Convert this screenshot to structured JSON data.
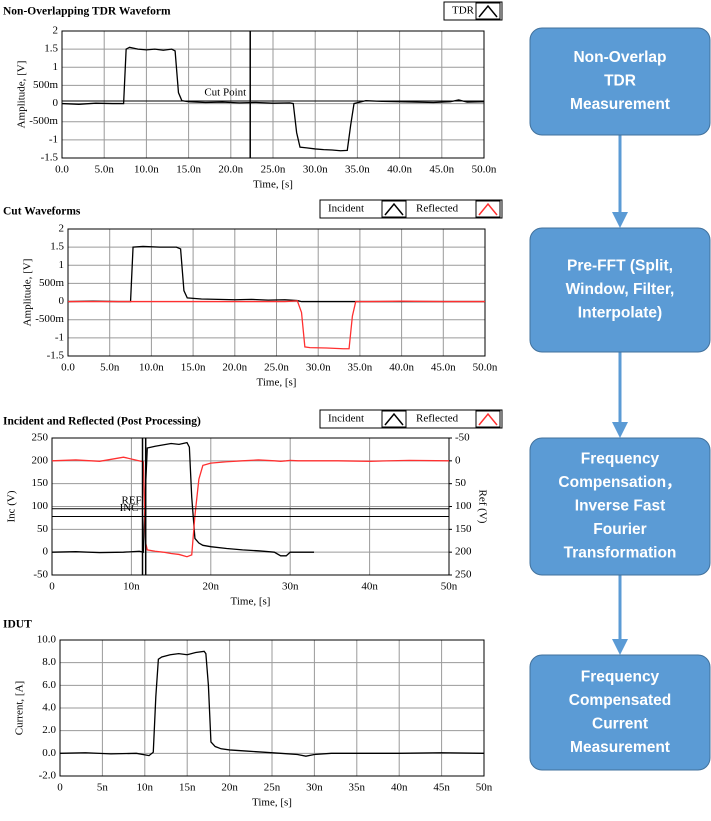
{
  "chart_data": [
    {
      "type": "line",
      "title": "Non-Overlapping TDR Waveform",
      "xlabel": "Time, [s]",
      "ylabel": "Amplitude, [V]",
      "xlim": [
        0,
        5e-08
      ],
      "ylim": [
        -1.5,
        2
      ],
      "grid": true,
      "legend": "top-right",
      "xticks": [
        {
          "value": 0,
          "label": "0.0"
        },
        {
          "value": 5e-09,
          "label": "5.0n"
        },
        {
          "value": 1e-08,
          "label": "10.0n"
        },
        {
          "value": 1.5e-08,
          "label": "15.0n"
        },
        {
          "value": 2e-08,
          "label": "20.0n"
        },
        {
          "value": 2.5e-08,
          "label": "25.0n"
        },
        {
          "value": 3e-08,
          "label": "30.0n"
        },
        {
          "value": 3.5e-08,
          "label": "35.0n"
        },
        {
          "value": 4e-08,
          "label": "40.0n"
        },
        {
          "value": 4.5e-08,
          "label": "45.0n"
        },
        {
          "value": 5e-08,
          "label": "50.0n"
        }
      ],
      "yticks": [
        2,
        1.5,
        1,
        {
          "value": 0.5,
          "label": "500m"
        },
        0,
        {
          "value": -0.5,
          "label": "-500m"
        },
        -1,
        -1.5
      ],
      "cursors": [
        {
          "label": "Cut Point",
          "x": 2.23e-08,
          "y": 0.07
        }
      ],
      "x": [
        0,
        2e-09,
        4e-09,
        6e-09,
        7.3e-09,
        7.6e-09,
        8e-09,
        9e-09,
        1e-08,
        1.1e-08,
        1.2e-08,
        1.3e-08,
        1.34e-08,
        1.38e-08,
        1.42e-08,
        1.5e-08,
        1.7e-08,
        1.9e-08,
        2.1e-08,
        2.3e-08,
        2.5e-08,
        2.7e-08,
        2.74e-08,
        2.78e-08,
        2.82e-08,
        2.9e-08,
        3e-08,
        3.1e-08,
        3.2e-08,
        3.3e-08,
        3.38e-08,
        3.42e-08,
        3.46e-08,
        3.6e-08,
        3.8e-08,
        4e-08,
        4.2e-08,
        4.4e-08,
        4.6e-08,
        4.7e-08,
        4.8e-08,
        5e-08
      ],
      "series": [
        {
          "name": "TDR",
          "color": "#000000",
          "values": [
            0,
            -0.02,
            0.01,
            0,
            0,
            1.5,
            1.55,
            1.5,
            1.48,
            1.5,
            1.47,
            1.5,
            1.45,
            0.3,
            0.08,
            0.05,
            0.03,
            0.04,
            0.02,
            0.03,
            0.01,
            0.02,
            0.0,
            -0.8,
            -1.2,
            -1.22,
            -1.25,
            -1.27,
            -1.28,
            -1.3,
            -1.29,
            -0.6,
            0.0,
            0.08,
            0.06,
            0.05,
            0.04,
            0.03,
            0.05,
            0.1,
            0.04,
            0.05
          ]
        }
      ]
    },
    {
      "type": "line",
      "title": "Cut Waveforms",
      "xlabel": "Time, [s]",
      "ylabel": "Amplitude, [V]",
      "xlim": [
        0,
        5e-08
      ],
      "ylim": [
        -1.5,
        2
      ],
      "grid": true,
      "legend": "top-right",
      "xticks": [
        {
          "value": 0,
          "label": "0.0"
        },
        {
          "value": 5e-09,
          "label": "5.0n"
        },
        {
          "value": 1e-08,
          "label": "10.0n"
        },
        {
          "value": 1.5e-08,
          "label": "15.0n"
        },
        {
          "value": 2e-08,
          "label": "20.0n"
        },
        {
          "value": 2.5e-08,
          "label": "25.0n"
        },
        {
          "value": 3e-08,
          "label": "30.0n"
        },
        {
          "value": 3.5e-08,
          "label": "35.0n"
        },
        {
          "value": 4e-08,
          "label": "40.0n"
        },
        {
          "value": 4.5e-08,
          "label": "45.0n"
        },
        {
          "value": 5e-08,
          "label": "50.0n"
        }
      ],
      "yticks": [
        2,
        1.5,
        1,
        {
          "value": 0.5,
          "label": "500m"
        },
        0,
        {
          "value": -0.5,
          "label": "-500m"
        },
        -1,
        -1.5
      ],
      "x": [
        0,
        3e-09,
        6e-09,
        7.5e-09,
        7.8e-09,
        9e-09,
        1.1e-08,
        1.3e-08,
        1.35e-08,
        1.39e-08,
        1.43e-08,
        1.6e-08,
        1.8e-08,
        2e-08,
        2.2e-08,
        2.4e-08,
        2.6e-08,
        2.75e-08,
        2.8e-08,
        2.84e-08,
        2.9e-08,
        3.1e-08,
        3.3e-08,
        3.37e-08,
        3.41e-08,
        3.45e-08,
        3.6e-08,
        4e-08,
        4.5e-08,
        5e-08
      ],
      "series": [
        {
          "name": "Incident",
          "color": "#000000",
          "values": [
            0,
            0.01,
            0,
            0,
            1.5,
            1.52,
            1.5,
            1.5,
            1.45,
            0.3,
            0.1,
            0.07,
            0.06,
            0.05,
            0.06,
            0.04,
            0.05,
            0.03,
            0,
            0,
            0,
            0,
            0,
            0,
            0,
            0,
            0,
            0,
            0,
            0
          ]
        },
        {
          "name": "Reflected",
          "color": "#ff3030",
          "values": [
            0,
            0,
            0,
            0,
            0,
            0,
            0,
            0,
            0,
            0,
            0,
            0,
            0,
            0,
            0,
            0,
            0,
            0.02,
            -0.3,
            -1.25,
            -1.27,
            -1.28,
            -1.3,
            -1.3,
            -0.4,
            0.0,
            0,
            0.01,
            0,
            0
          ]
        }
      ]
    },
    {
      "type": "line",
      "title": "Incident and Reflected (Post Processing)",
      "xlabel": "Time, [s]",
      "ylabel": "Inc (V)",
      "y2label": "Ref (V)",
      "xlim": [
        0,
        5e-08
      ],
      "ylim": [
        -50,
        250
      ],
      "y2lim": [
        -50,
        250
      ],
      "y2_inverted": true,
      "grid": true,
      "legend": "top-right",
      "xticks": [
        0,
        {
          "value": 1e-08,
          "label": "10n"
        },
        {
          "value": 2e-08,
          "label": "20n"
        },
        {
          "value": 3e-08,
          "label": "30n"
        },
        {
          "value": 4e-08,
          "label": "40n"
        },
        {
          "value": 5e-08,
          "label": "50n"
        }
      ],
      "yticks": [
        250,
        200,
        150,
        100,
        50,
        0,
        -50
      ],
      "y2ticks": [
        -50,
        0,
        50,
        100,
        150,
        200,
        250
      ],
      "cursors": [
        {
          "label": "REF",
          "x": 1.18e-08,
          "y": 95
        },
        {
          "label": "INC",
          "x": 1.14e-08,
          "y": 78
        }
      ],
      "x": [
        0,
        3e-09,
        6e-09,
        9e-09,
        1.1e-08,
        1.15e-08,
        1.18e-08,
        1.2e-08,
        1.3e-08,
        1.4e-08,
        1.5e-08,
        1.6e-08,
        1.7e-08,
        1.73e-08,
        1.76e-08,
        1.8e-08,
        1.85e-08,
        1.9e-08,
        2e-08,
        2.2e-08,
        2.4e-08,
        2.6e-08,
        2.8e-08,
        2.88e-08,
        2.95e-08,
        3e-08,
        3.1e-08,
        3.3e-08,
        3.6e-08,
        4e-08,
        4.5e-08,
        5e-08
      ],
      "series": [
        {
          "name": "Incident",
          "color": "#000000",
          "values": [
            0,
            1,
            -1,
            0,
            2,
            0,
            150,
            228,
            232,
            235,
            238,
            236,
            240,
            230,
            120,
            30,
            20,
            15,
            12,
            8,
            5,
            3,
            0,
            -8,
            -8,
            0,
            0,
            0,
            null,
            null,
            null,
            null
          ]
        },
        {
          "name": "Reflected",
          "color": "#ff3030",
          "axis": "y2",
          "values": [
            0,
            -2,
            1,
            -8,
            0,
            2,
            180,
            195,
            198,
            200,
            203,
            205,
            210,
            208,
            206,
            120,
            40,
            10,
            5,
            2,
            0,
            -2,
            0,
            1,
            0,
            -1,
            0,
            0,
            0,
            1,
            -1,
            0
          ]
        }
      ]
    },
    {
      "type": "line",
      "title": "IDUT",
      "xlabel": "Time, [s]",
      "ylabel": "Current, [A]",
      "xlim": [
        0,
        5e-08
      ],
      "ylim": [
        -2,
        10
      ],
      "grid": true,
      "xticks": [
        0,
        {
          "value": 5e-09,
          "label": "5n"
        },
        {
          "value": 1e-08,
          "label": "10n"
        },
        {
          "value": 1.5e-08,
          "label": "15n"
        },
        {
          "value": 2e-08,
          "label": "20n"
        },
        {
          "value": 2.5e-08,
          "label": "25n"
        },
        {
          "value": 3e-08,
          "label": "30n"
        },
        {
          "value": 3.5e-08,
          "label": "35n"
        },
        {
          "value": 4e-08,
          "label": "40n"
        },
        {
          "value": 4.5e-08,
          "label": "45n"
        },
        {
          "value": 5e-08,
          "label": "50n"
        }
      ],
      "yticks": [
        {
          "value": 10,
          "label": "10.0"
        },
        {
          "value": 8,
          "label": "8.0"
        },
        {
          "value": 6,
          "label": "6.0"
        },
        {
          "value": 4,
          "label": "4.0"
        },
        {
          "value": 2,
          "label": "2.0"
        },
        {
          "value": 0,
          "label": "0.0"
        },
        {
          "value": -2,
          "label": "-2.0"
        }
      ],
      "x": [
        0,
        3e-09,
        6e-09,
        9e-09,
        1.05e-08,
        1.1e-08,
        1.13e-08,
        1.16e-08,
        1.2e-08,
        1.3e-08,
        1.4e-08,
        1.5e-08,
        1.6e-08,
        1.7e-08,
        1.72e-08,
        1.75e-08,
        1.78e-08,
        1.83e-08,
        1.9e-08,
        2e-08,
        2.2e-08,
        2.4e-08,
        2.6e-08,
        2.8e-08,
        2.9e-08,
        3e-08,
        3.2e-08,
        3.5e-08,
        4e-08,
        4.5e-08,
        5e-08
      ],
      "series": [
        {
          "name": "IDUT",
          "color": "#000000",
          "values": [
            0,
            0.05,
            -0.05,
            0,
            -0.2,
            0.1,
            5,
            8.3,
            8.5,
            8.7,
            8.8,
            8.7,
            8.9,
            9.0,
            8.8,
            6,
            1,
            0.6,
            0.4,
            0.3,
            0.2,
            0.1,
            0,
            -0.1,
            -0.25,
            -0.1,
            0,
            0,
            0,
            0.05,
            0
          ]
        }
      ]
    }
  ],
  "flowchart": {
    "nodes": [
      {
        "lines": [
          "Non-Overlap",
          "TDR",
          "Measurement"
        ]
      },
      {
        "lines": [
          "Pre-FFT (Split,",
          "Window, Filter,",
          "Interpolate)"
        ]
      },
      {
        "lines": [
          "Frequency",
          "Compensation，",
          "Inverse Fast",
          "Fourier",
          "Transformation"
        ]
      },
      {
        "lines": [
          "Frequency",
          "Compensated",
          "Current",
          "Measurement"
        ]
      }
    ]
  }
}
